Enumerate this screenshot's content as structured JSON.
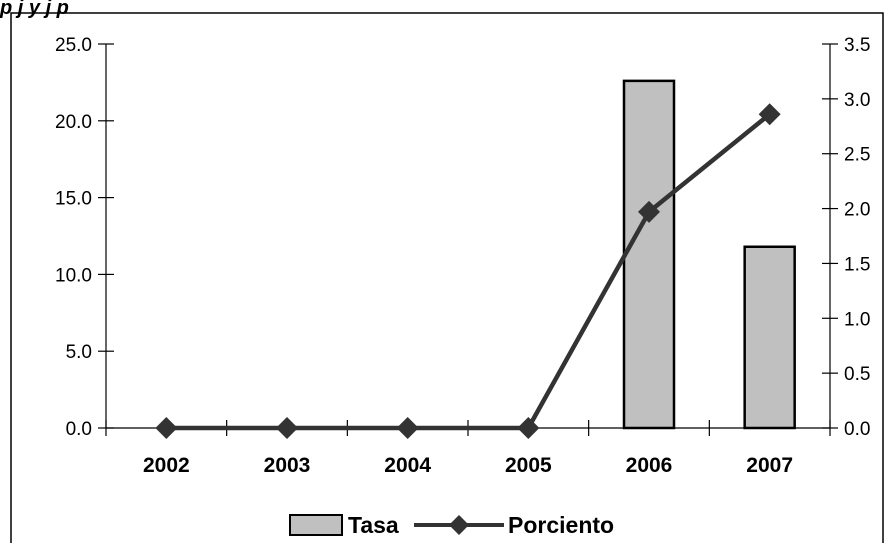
{
  "cropped_title_fragment": "p        j    y    j  p",
  "chart_data": {
    "type": "bar+line",
    "categories": [
      "2002",
      "2003",
      "2004",
      "2005",
      "2006",
      "2007"
    ],
    "series": [
      {
        "name": "Tasa",
        "type": "bar",
        "axis": "left",
        "values": [
          0.0,
          0.0,
          0.0,
          0.0,
          22.6,
          11.8
        ],
        "color": "#c0c0c0"
      },
      {
        "name": "Porciento",
        "type": "line",
        "axis": "right",
        "values": [
          0.0,
          0.0,
          0.0,
          0.0,
          1.97,
          2.86
        ],
        "color": "#333333",
        "marker": "diamond"
      }
    ],
    "y_left": {
      "ylim": [
        0,
        25
      ],
      "ticks": [
        "0.0",
        "5.0",
        "10.0",
        "15.0",
        "20.0",
        "25.0"
      ]
    },
    "y_right": {
      "ylim": [
        0,
        3.5
      ],
      "ticks": [
        "0.0",
        "0.5",
        "1.0",
        "1.5",
        "2.0",
        "2.5",
        "3.0",
        "3.5"
      ]
    },
    "grid": false,
    "legend_position": "bottom"
  }
}
